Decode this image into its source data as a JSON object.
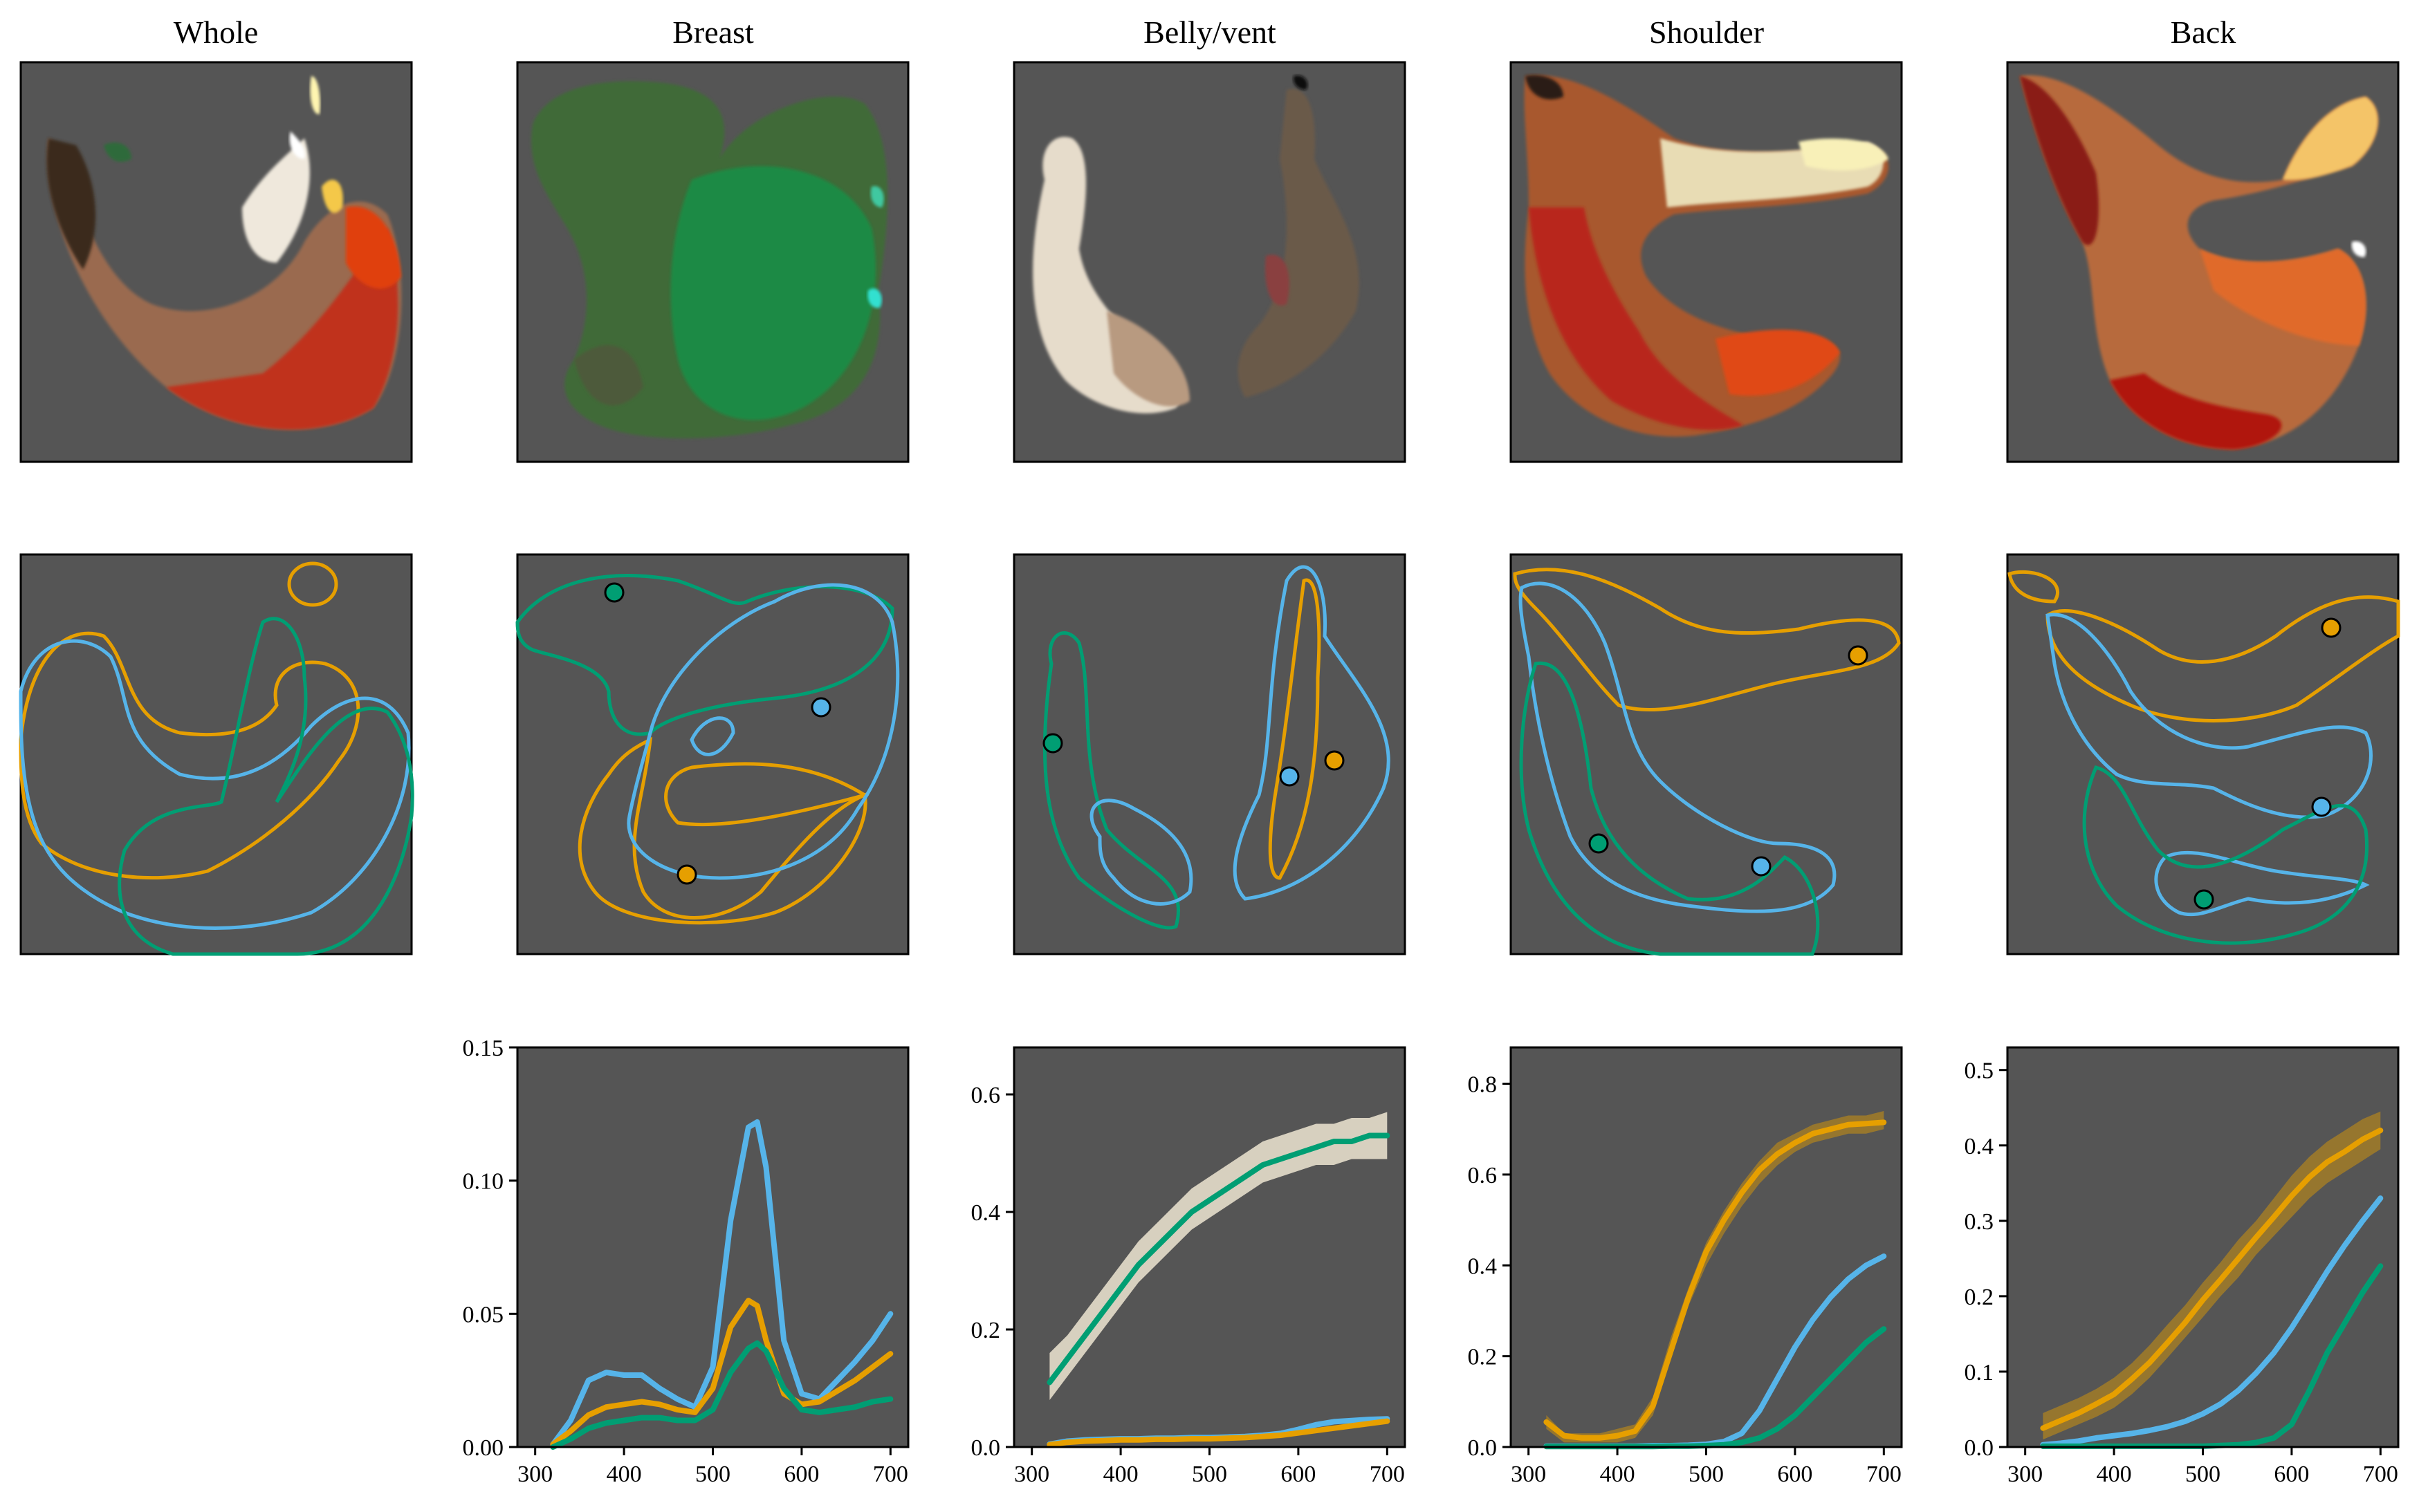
{
  "colors": {
    "green": "#009E73",
    "blue": "#56B4E9",
    "orange": "#E69F00",
    "panel_bg": "#555555",
    "band": "#EEE6D2"
  },
  "columns": [
    {
      "title": "Whole"
    },
    {
      "title": "Breast"
    },
    {
      "title": "Belly/vent"
    },
    {
      "title": "Shoulder"
    },
    {
      "title": "Back"
    }
  ],
  "chart_data": [
    {
      "panel": "Breast",
      "type": "line",
      "xlim": [
        300,
        700
      ],
      "ylim": [
        0,
        0.15
      ],
      "xticks": [
        300,
        400,
        500,
        600,
        700
      ],
      "yticks": [
        0.0,
        0.05,
        0.1,
        0.15
      ],
      "ytick_labels": [
        "0.00",
        "0.05",
        "0.10",
        "0.15"
      ],
      "x": [
        320,
        340,
        360,
        380,
        400,
        420,
        440,
        460,
        480,
        500,
        520,
        540,
        550,
        560,
        580,
        600,
        620,
        640,
        660,
        680,
        700
      ],
      "series": [
        {
          "color": "blue",
          "values": [
            0.001,
            0.01,
            0.025,
            0.028,
            0.027,
            0.027,
            0.022,
            0.018,
            0.015,
            0.03,
            0.085,
            0.12,
            0.122,
            0.105,
            0.04,
            0.02,
            0.018,
            0.025,
            0.032,
            0.04,
            0.05
          ]
        },
        {
          "color": "orange",
          "values": [
            0.001,
            0.006,
            0.012,
            0.015,
            0.016,
            0.017,
            0.016,
            0.014,
            0.013,
            0.022,
            0.045,
            0.055,
            0.053,
            0.04,
            0.02,
            0.016,
            0.017,
            0.021,
            0.025,
            0.03,
            0.035
          ]
        },
        {
          "color": "green",
          "values": [
            0.0,
            0.003,
            0.007,
            0.009,
            0.01,
            0.011,
            0.011,
            0.01,
            0.01,
            0.014,
            0.028,
            0.037,
            0.039,
            0.036,
            0.022,
            0.014,
            0.013,
            0.014,
            0.015,
            0.017,
            0.018
          ]
        }
      ]
    },
    {
      "panel": "Belly/vent",
      "type": "line",
      "xlim": [
        300,
        700
      ],
      "ylim": [
        0,
        0.68
      ],
      "xticks": [
        300,
        400,
        500,
        600,
        700
      ],
      "yticks": [
        0.0,
        0.2,
        0.4,
        0.6
      ],
      "ytick_labels": [
        "0.0",
        "0.2",
        "0.4",
        "0.6"
      ],
      "x": [
        320,
        340,
        360,
        380,
        400,
        420,
        440,
        460,
        480,
        500,
        520,
        540,
        560,
        580,
        600,
        620,
        640,
        660,
        680,
        700
      ],
      "band": {
        "color": "band",
        "lower": [
          0.08,
          0.12,
          0.16,
          0.2,
          0.24,
          0.28,
          0.31,
          0.34,
          0.37,
          0.39,
          0.41,
          0.43,
          0.45,
          0.46,
          0.47,
          0.48,
          0.48,
          0.49,
          0.49,
          0.49
        ],
        "upper": [
          0.16,
          0.19,
          0.23,
          0.27,
          0.31,
          0.35,
          0.38,
          0.41,
          0.44,
          0.46,
          0.48,
          0.5,
          0.52,
          0.53,
          0.54,
          0.55,
          0.55,
          0.56,
          0.56,
          0.57
        ]
      },
      "series": [
        {
          "color": "green",
          "values": [
            0.11,
            0.15,
            0.19,
            0.23,
            0.27,
            0.31,
            0.34,
            0.37,
            0.4,
            0.42,
            0.44,
            0.46,
            0.48,
            0.49,
            0.5,
            0.51,
            0.52,
            0.52,
            0.53,
            0.53
          ]
        },
        {
          "color": "blue",
          "values": [
            0.005,
            0.01,
            0.012,
            0.013,
            0.014,
            0.014,
            0.015,
            0.015,
            0.016,
            0.016,
            0.017,
            0.018,
            0.02,
            0.023,
            0.03,
            0.038,
            0.043,
            0.045,
            0.047,
            0.048
          ]
        },
        {
          "color": "orange",
          "values": [
            0.004,
            0.008,
            0.01,
            0.011,
            0.012,
            0.012,
            0.013,
            0.013,
            0.014,
            0.014,
            0.015,
            0.016,
            0.018,
            0.02,
            0.024,
            0.028,
            0.032,
            0.036,
            0.04,
            0.044
          ]
        }
      ]
    },
    {
      "panel": "Shoulder",
      "type": "line",
      "xlim": [
        300,
        700
      ],
      "ylim": [
        0,
        0.88
      ],
      "xticks": [
        300,
        400,
        500,
        600,
        700
      ],
      "yticks": [
        0.0,
        0.2,
        0.4,
        0.6,
        0.8
      ],
      "ytick_labels": [
        "0.0",
        "0.2",
        "0.4",
        "0.6",
        "0.8"
      ],
      "x": [
        320,
        340,
        360,
        380,
        400,
        420,
        440,
        460,
        480,
        500,
        520,
        540,
        560,
        580,
        600,
        620,
        640,
        660,
        680,
        700
      ],
      "band": {
        "color": "orange",
        "lower": [
          0.04,
          0.01,
          0.01,
          0.01,
          0.01,
          0.02,
          0.07,
          0.19,
          0.31,
          0.4,
          0.47,
          0.53,
          0.58,
          0.62,
          0.65,
          0.67,
          0.68,
          0.69,
          0.69,
          0.7
        ],
        "upper": [
          0.07,
          0.03,
          0.03,
          0.03,
          0.04,
          0.05,
          0.11,
          0.24,
          0.35,
          0.45,
          0.52,
          0.58,
          0.63,
          0.67,
          0.69,
          0.71,
          0.72,
          0.73,
          0.73,
          0.74
        ]
      },
      "series": [
        {
          "color": "orange",
          "values": [
            0.055,
            0.025,
            0.02,
            0.02,
            0.025,
            0.035,
            0.09,
            0.21,
            0.33,
            0.43,
            0.5,
            0.56,
            0.61,
            0.645,
            0.67,
            0.69,
            0.7,
            0.71,
            0.712,
            0.715
          ]
        },
        {
          "color": "blue",
          "values": [
            0.002,
            0.002,
            0.002,
            0.002,
            0.002,
            0.002,
            0.003,
            0.003,
            0.004,
            0.006,
            0.012,
            0.03,
            0.08,
            0.15,
            0.22,
            0.28,
            0.33,
            0.37,
            0.4,
            0.42
          ]
        },
        {
          "color": "green",
          "values": [
            0.001,
            0.001,
            0.001,
            0.001,
            0.001,
            0.001,
            0.001,
            0.002,
            0.002,
            0.003,
            0.005,
            0.01,
            0.02,
            0.04,
            0.07,
            0.11,
            0.15,
            0.19,
            0.23,
            0.26
          ]
        }
      ]
    },
    {
      "panel": "Back",
      "type": "line",
      "xlim": [
        300,
        700
      ],
      "ylim": [
        0,
        0.53
      ],
      "xticks": [
        300,
        400,
        500,
        600,
        700
      ],
      "yticks": [
        0.0,
        0.1,
        0.2,
        0.3,
        0.4,
        0.5
      ],
      "ytick_labels": [
        "0.0",
        "0.1",
        "0.2",
        "0.3",
        "0.4",
        "0.5"
      ],
      "x": [
        320,
        340,
        360,
        380,
        400,
        420,
        440,
        460,
        480,
        500,
        520,
        540,
        560,
        580,
        600,
        620,
        640,
        660,
        680,
        700
      ],
      "band": {
        "color": "orange",
        "lower": [
          0.01,
          0.02,
          0.03,
          0.04,
          0.052,
          0.07,
          0.092,
          0.118,
          0.145,
          0.172,
          0.2,
          0.225,
          0.255,
          0.28,
          0.305,
          0.33,
          0.35,
          0.365,
          0.38,
          0.395
        ],
        "upper": [
          0.045,
          0.055,
          0.065,
          0.077,
          0.092,
          0.111,
          0.135,
          0.162,
          0.188,
          0.218,
          0.245,
          0.275,
          0.3,
          0.33,
          0.36,
          0.385,
          0.405,
          0.42,
          0.435,
          0.445
        ]
      },
      "series": [
        {
          "color": "orange",
          "values": [
            0.025,
            0.035,
            0.045,
            0.057,
            0.07,
            0.09,
            0.112,
            0.138,
            0.165,
            0.195,
            0.222,
            0.25,
            0.278,
            0.305,
            0.333,
            0.358,
            0.378,
            0.392,
            0.408,
            0.42
          ]
        },
        {
          "color": "blue",
          "values": [
            0.003,
            0.005,
            0.008,
            0.012,
            0.015,
            0.018,
            0.022,
            0.027,
            0.034,
            0.044,
            0.057,
            0.075,
            0.098,
            0.125,
            0.158,
            0.195,
            0.233,
            0.268,
            0.3,
            0.33
          ]
        },
        {
          "color": "green",
          "values": [
            0.001,
            0.001,
            0.001,
            0.001,
            0.001,
            0.001,
            0.001,
            0.001,
            0.001,
            0.001,
            0.002,
            0.003,
            0.006,
            0.012,
            0.03,
            0.075,
            0.125,
            0.165,
            0.205,
            0.24
          ]
        }
      ]
    }
  ]
}
